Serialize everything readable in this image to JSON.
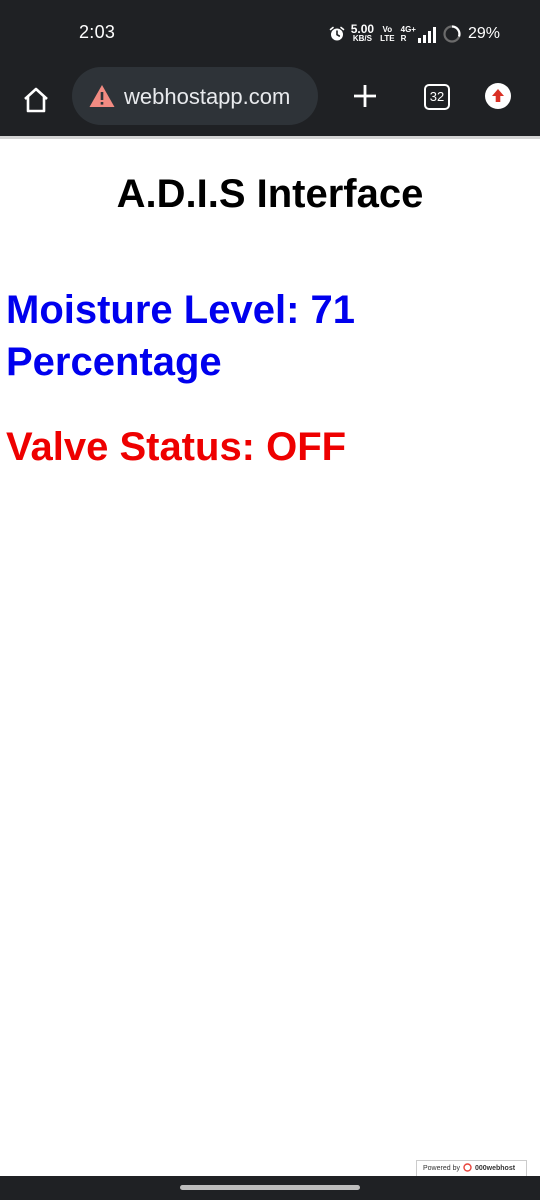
{
  "status_bar": {
    "time": "2:03",
    "net_speed_value": "5.00",
    "net_speed_unit": "KB/S",
    "volte_top": "Vo",
    "volte_bottom": "LTE",
    "network_top": "4G+",
    "network_bottom": "R",
    "battery_percent": "29%",
    "icons": [
      "alarm-icon",
      "signal-bars-icon",
      "battery-ring-icon"
    ]
  },
  "toolbar": {
    "url": "webhostapp.com",
    "tab_count": "32",
    "icons": [
      "home-icon",
      "warning-icon",
      "plus-icon",
      "tab-switcher-icon",
      "menu-update-icon"
    ],
    "colors": {
      "background": "#1f2124",
      "url_box": "#2e3338",
      "warning": "#f28b82",
      "update_badge": "#d93025"
    }
  },
  "page": {
    "title": "A.D.I.S Interface",
    "moisture_text": "Moisture Level: 71 Percentage",
    "valve_text": "Valve Status: OFF",
    "colors": {
      "moisture": "#0000ee",
      "valve": "#ee0000"
    }
  },
  "badge": {
    "prefix": "Powered by",
    "brand": "000webhost"
  }
}
